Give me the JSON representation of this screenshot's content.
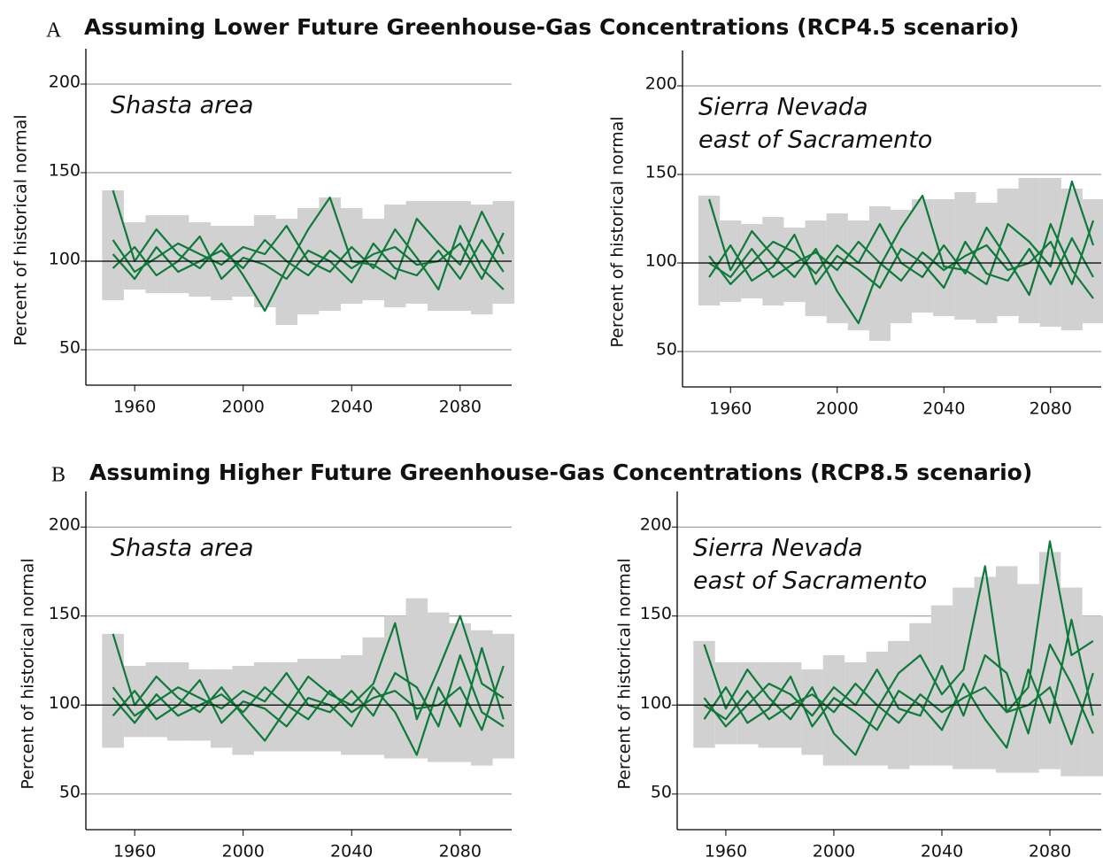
{
  "sections": [
    {
      "letter": "A",
      "title": "Assuming Lower Future Greenhouse-Gas Concentrations (RCP4.5 scenario)"
    },
    {
      "letter": "B",
      "title": "Assuming Higher Future Greenhouse-Gas Concentrations (RCP8.5 scenario)"
    }
  ],
  "chart_data": [
    {
      "type": "line",
      "title": [
        "Shasta area"
      ],
      "ylabel": "Percent of historical normal",
      "x": [
        1952,
        1960,
        1968,
        1976,
        1984,
        1992,
        2000,
        2008,
        2016,
        2024,
        2032,
        2040,
        2048,
        2056,
        2064,
        2072,
        2080,
        2088,
        2096
      ],
      "xlim": [
        1942,
        2099
      ],
      "xticks": [
        1960,
        2000,
        2040,
        2080
      ],
      "ylim": [
        30,
        220
      ],
      "yticks": [
        50,
        100,
        150,
        200
      ],
      "grid": true,
      "refline": 100,
      "range": {
        "color": "#d1d1d1",
        "low": [
          78,
          84,
          82,
          82,
          80,
          78,
          80,
          74,
          64,
          70,
          72,
          76,
          78,
          74,
          76,
          72,
          72,
          70,
          76
        ],
        "high": [
          140,
          122,
          126,
          126,
          122,
          120,
          120,
          126,
          124,
          130,
          136,
          130,
          124,
          132,
          134,
          134,
          134,
          132,
          134
        ]
      },
      "series": [
        {
          "color": "#0e7a3a",
          "values": [
            140,
            100,
            118,
            104,
            96,
            110,
            92,
            72,
            96,
            118,
            136,
            100,
            98,
            90,
            124,
            110,
            98,
            128,
            104
          ]
        },
        {
          "color": "#0e7a3a",
          "values": [
            112,
            94,
            102,
            110,
            104,
            98,
            108,
            104,
            120,
            100,
            94,
            108,
            96,
            118,
            102,
            84,
            120,
            96,
            84
          ]
        },
        {
          "color": "#0e7a3a",
          "values": [
            96,
            108,
            92,
            100,
            114,
            90,
            102,
            98,
            90,
            106,
            100,
            88,
            110,
            96,
            92,
            106,
            90,
            112,
            94
          ]
        },
        {
          "color": "#0e7a3a",
          "values": [
            104,
            90,
            108,
            94,
            100,
            106,
            96,
            112,
            100,
            92,
            106,
            96,
            104,
            108,
            98,
            100,
            110,
            90,
            116
          ]
        }
      ]
    },
    {
      "type": "line",
      "title": [
        "Sierra Nevada",
        "east of Sacramento"
      ],
      "ylabel": "Percent of historical normal",
      "x": [
        1952,
        1960,
        1968,
        1976,
        1984,
        1992,
        2000,
        2008,
        2016,
        2024,
        2032,
        2040,
        2048,
        2056,
        2064,
        2072,
        2080,
        2088,
        2096
      ],
      "xlim": [
        1942,
        2099
      ],
      "xticks": [
        1960,
        2000,
        2040,
        2080
      ],
      "ylim": [
        30,
        220
      ],
      "yticks": [
        50,
        100,
        150,
        200
      ],
      "grid": true,
      "refline": 100,
      "range": {
        "color": "#d1d1d1",
        "low": [
          76,
          78,
          80,
          76,
          78,
          70,
          66,
          62,
          56,
          66,
          72,
          70,
          68,
          66,
          70,
          66,
          64,
          62,
          66
        ],
        "high": [
          138,
          124,
          122,
          126,
          120,
          124,
          128,
          124,
          132,
          130,
          136,
          136,
          140,
          134,
          142,
          148,
          148,
          142,
          136
        ]
      },
      "series": [
        {
          "color": "#0e7a3a",
          "values": [
            136,
            96,
            118,
            104,
            92,
            108,
            84,
            66,
            98,
            120,
            138,
            98,
            96,
            88,
            122,
            112,
            98,
            146,
            110
          ]
        },
        {
          "color": "#0e7a3a",
          "values": [
            104,
            88,
            100,
            112,
            106,
            94,
            110,
            100,
            122,
            100,
            92,
            110,
            94,
            120,
            102,
            82,
            122,
            96,
            80
          ]
        },
        {
          "color": "#0e7a3a",
          "values": [
            92,
            110,
            90,
            98,
            116,
            88,
            104,
            96,
            86,
            108,
            100,
            86,
            112,
            94,
            90,
            108,
            88,
            114,
            92
          ]
        },
        {
          "color": "#0e7a3a",
          "values": [
            100,
            92,
            108,
            92,
            100,
            106,
            96,
            112,
            100,
            90,
            106,
            96,
            104,
            110,
            96,
            100,
            112,
            88,
            124
          ]
        }
      ]
    },
    {
      "type": "line",
      "title": [
        "Shasta area"
      ],
      "ylabel": "Percent of historical normal",
      "x": [
        1952,
        1960,
        1968,
        1976,
        1984,
        1992,
        2000,
        2008,
        2016,
        2024,
        2032,
        2040,
        2048,
        2056,
        2064,
        2072,
        2080,
        2088,
        2096
      ],
      "xlim": [
        1942,
        2099
      ],
      "xticks": [
        1960,
        2000,
        2040,
        2080
      ],
      "ylim": [
        30,
        220
      ],
      "yticks": [
        50,
        100,
        150,
        200
      ],
      "grid": true,
      "refline": 100,
      "range": {
        "color": "#d1d1d1",
        "low": [
          76,
          82,
          82,
          80,
          80,
          76,
          72,
          74,
          74,
          74,
          74,
          72,
          72,
          70,
          70,
          68,
          68,
          66,
          70
        ],
        "high": [
          140,
          122,
          124,
          124,
          120,
          120,
          122,
          124,
          124,
          126,
          126,
          128,
          138,
          150,
          160,
          152,
          146,
          142,
          140
        ]
      },
      "series": [
        {
          "color": "#0e7a3a",
          "values": [
            140,
            100,
            116,
            104,
            96,
            110,
            94,
            80,
            98,
            116,
            106,
            100,
            112,
            146,
            92,
            120,
            150,
            112,
            104
          ]
        },
        {
          "color": "#0e7a3a",
          "values": [
            110,
            94,
            102,
            110,
            104,
            98,
            108,
            102,
            118,
            100,
            96,
            108,
            94,
            118,
            110,
            88,
            128,
            96,
            88
          ]
        },
        {
          "color": "#0e7a3a",
          "values": [
            94,
            108,
            92,
            100,
            114,
            90,
            102,
            98,
            88,
            104,
            100,
            88,
            110,
            96,
            72,
            110,
            88,
            132,
            92
          ]
        },
        {
          "color": "#0e7a3a",
          "values": [
            104,
            90,
            106,
            94,
            100,
            106,
            96,
            110,
            100,
            92,
            108,
            96,
            104,
            108,
            98,
            100,
            110,
            86,
            122
          ]
        }
      ]
    },
    {
      "type": "line",
      "title": [
        "Sierra Nevada",
        "east of Sacramento"
      ],
      "ylabel": "Percent of historical normal",
      "x": [
        1952,
        1960,
        1968,
        1976,
        1984,
        1992,
        2000,
        2008,
        2016,
        2024,
        2032,
        2040,
        2048,
        2056,
        2064,
        2072,
        2080,
        2088,
        2096
      ],
      "xlim": [
        1942,
        2099
      ],
      "xticks": [
        1960,
        2000,
        2040,
        2080
      ],
      "ylim": [
        30,
        220
      ],
      "yticks": [
        50,
        100,
        150,
        200
      ],
      "grid": true,
      "refline": 100,
      "range": {
        "color": "#d1d1d1",
        "low": [
          76,
          78,
          78,
          76,
          76,
          72,
          66,
          66,
          66,
          64,
          66,
          66,
          64,
          64,
          62,
          62,
          64,
          60,
          60
        ],
        "high": [
          136,
          124,
          124,
          124,
          124,
          120,
          128,
          124,
          130,
          136,
          146,
          156,
          166,
          172,
          178,
          168,
          186,
          166,
          150
        ]
      },
      "series": [
        {
          "color": "#0e7a3a",
          "values": [
            134,
            98,
            120,
            104,
            92,
            110,
            84,
            72,
            98,
            118,
            128,
            106,
            120,
            178,
            96,
            110,
            192,
            128,
            136
          ]
        },
        {
          "color": "#0e7a3a",
          "values": [
            104,
            88,
            100,
            112,
            106,
            94,
            110,
            100,
            120,
            98,
            94,
            122,
            94,
            128,
            118,
            84,
            134,
            112,
            84
          ]
        },
        {
          "color": "#0e7a3a",
          "values": [
            92,
            110,
            90,
            98,
            116,
            88,
            104,
            96,
            86,
            108,
            100,
            86,
            112,
            92,
            76,
            120,
            90,
            148,
            94
          ]
        },
        {
          "color": "#0e7a3a",
          "values": [
            100,
            92,
            108,
            92,
            100,
            106,
            96,
            112,
            100,
            90,
            106,
            96,
            104,
            110,
            96,
            100,
            110,
            78,
            118
          ]
        }
      ]
    }
  ]
}
